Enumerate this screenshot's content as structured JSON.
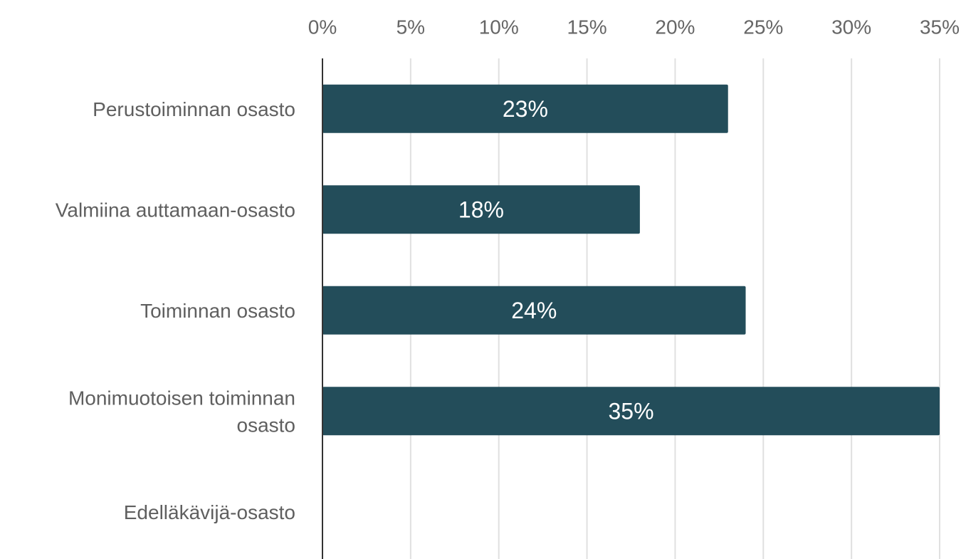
{
  "chart_data": {
    "type": "bar",
    "orientation": "horizontal",
    "categories": [
      "Perustoiminnan osasto",
      "Valmiina auttamaan-osasto",
      "Toiminnan osasto",
      "Monimuotoisen toiminnan osasto",
      "Edelläkävijä-osasto"
    ],
    "category_label_lines": [
      [
        "Perustoiminnan osasto"
      ],
      [
        "Valmiina auttamaan-osasto"
      ],
      [
        "Toiminnan osasto"
      ],
      [
        "Monimuotoisen toiminnan",
        "osasto"
      ],
      [
        "Edelläkävijä-osasto"
      ]
    ],
    "values": [
      23,
      18,
      24,
      35,
      null
    ],
    "data_labels": [
      "23%",
      "18%",
      "24%",
      "35%",
      ""
    ],
    "xlim": [
      0,
      35
    ],
    "x_ticks": [
      0,
      5,
      10,
      15,
      20,
      25,
      30,
      35
    ],
    "x_tick_labels": [
      "0%",
      "5%",
      "10%",
      "15%",
      "20%",
      "25%",
      "30%",
      "35%"
    ],
    "x_axis_position": "top",
    "grid": true,
    "legend": "none",
    "title": "",
    "xlabel": "",
    "ylabel": "",
    "colors": {
      "bar": "#234d5a",
      "grid": "#e0e0e0",
      "axis": "#333333",
      "tick_text": "#666666",
      "category_text": "#5f5f5f",
      "data_label_text": "#ffffff"
    }
  }
}
